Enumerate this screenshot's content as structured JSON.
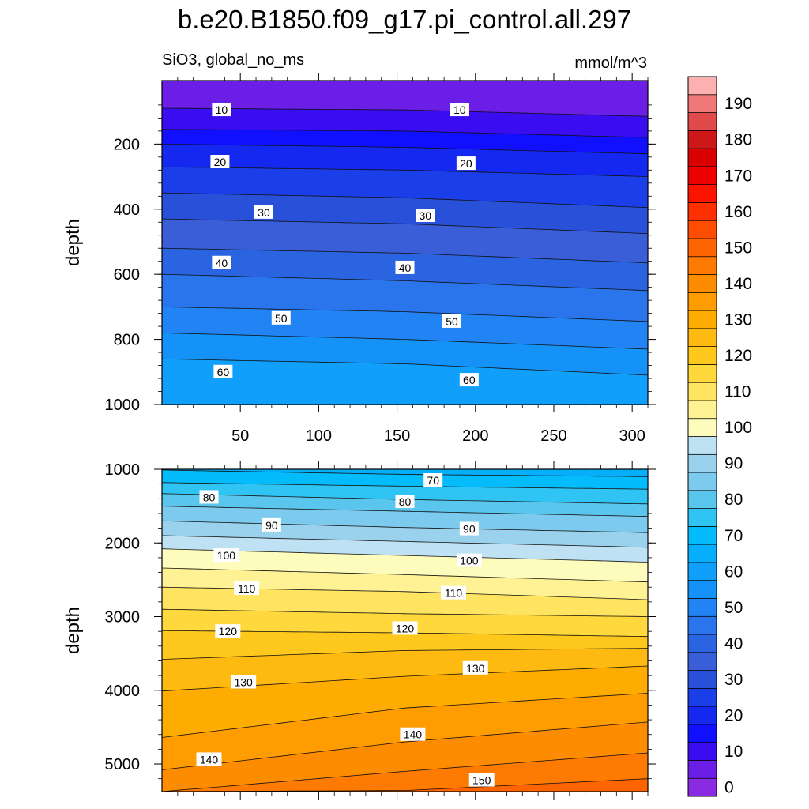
{
  "chart_data": {
    "type": "contour",
    "title": "b.e20.B1850.f09_g17.pi_control.all.297",
    "variable_label": "SiO3, global_no_ms",
    "units": "mmol/m^3",
    "colorbar": {
      "levels": [
        0,
        5,
        10,
        15,
        20,
        25,
        30,
        35,
        40,
        45,
        50,
        55,
        60,
        65,
        70,
        75,
        80,
        85,
        90,
        95,
        100,
        105,
        110,
        115,
        120,
        125,
        130,
        135,
        140,
        145,
        150,
        155,
        160,
        165,
        170,
        175,
        180,
        185,
        190,
        195
      ],
      "tick_labels": [
        "0",
        "10",
        "20",
        "30",
        "40",
        "50",
        "60",
        "70",
        "80",
        "90",
        "100",
        "110",
        "120",
        "130",
        "140",
        "150",
        "160",
        "170",
        "180",
        "190"
      ],
      "colors": [
        "#8a2be2",
        "#6a1ee6",
        "#3a0cf0",
        "#1010ff",
        "#1428f0",
        "#1a3ee8",
        "#2850d8",
        "#3a5ed8",
        "#2a64e0",
        "#2a74ec",
        "#2284f4",
        "#1492f8",
        "#10a0fc",
        "#06aefc",
        "#04bcfc",
        "#30c4f4",
        "#5ac6ee",
        "#7ccaee",
        "#9ad2ee",
        "#bee2f4",
        "#fefcbc",
        "#fef294",
        "#fee460",
        "#fed83c",
        "#fec81c",
        "#feba10",
        "#feac00",
        "#fe9c00",
        "#fe8c00",
        "#fe7a00",
        "#fe6400",
        "#fe4c00",
        "#fe3000",
        "#fc1400",
        "#ec0000",
        "#d80000",
        "#cc1818",
        "#e04a4a",
        "#f07878",
        "#fcb0b0"
      ]
    },
    "panels": [
      {
        "name": "upper",
        "ylabel": "depth",
        "x_range": [
          0,
          310
        ],
        "y_range": [
          5,
          1000
        ],
        "x_ticks": [
          50,
          100,
          150,
          200,
          250,
          300
        ],
        "y_ticks": [
          200,
          400,
          600,
          800,
          1000
        ],
        "x_tick_labels": [
          "50",
          "100",
          "150",
          "200",
          "250",
          "300"
        ],
        "y_tick_labels": [
          "200",
          "400",
          "600",
          "800",
          "1000"
        ],
        "bands": [
          {
            "level": 5,
            "depth": [
              5,
              5,
              5
            ]
          },
          {
            "level": 10,
            "depth": [
              90,
              95,
              115
            ]
          },
          {
            "level": 15,
            "depth": [
              155,
              160,
              180
            ]
          },
          {
            "level": 20,
            "depth": [
              200,
              210,
              230
            ]
          },
          {
            "level": 25,
            "depth": [
              270,
              280,
              300
            ]
          },
          {
            "level": 30,
            "depth": [
              350,
              365,
              395
            ]
          },
          {
            "level": 35,
            "depth": [
              430,
              445,
              475
            ]
          },
          {
            "level": 40,
            "depth": [
              520,
              535,
              565
            ]
          },
          {
            "level": 45,
            "depth": [
              600,
              620,
              650
            ]
          },
          {
            "level": 50,
            "depth": [
              700,
              715,
              745
            ]
          },
          {
            "level": 55,
            "depth": [
              780,
              800,
              830
            ]
          },
          {
            "level": 60,
            "depth": [
              860,
              875,
              910
            ]
          }
        ],
        "contour_labels": [
          {
            "text": "10",
            "x": 38,
            "y": 95
          },
          {
            "text": "10",
            "x": 190,
            "y": 95
          },
          {
            "text": "20",
            "x": 37,
            "y": 255
          },
          {
            "text": "20",
            "x": 194,
            "y": 260
          },
          {
            "text": "30",
            "x": 65,
            "y": 410
          },
          {
            "text": "30",
            "x": 168,
            "y": 420
          },
          {
            "text": "40",
            "x": 38,
            "y": 565
          },
          {
            "text": "40",
            "x": 155,
            "y": 580
          },
          {
            "text": "50",
            "x": 76,
            "y": 735
          },
          {
            "text": "50",
            "x": 185,
            "y": 745
          },
          {
            "text": "60",
            "x": 39,
            "y": 900
          },
          {
            "text": "60",
            "x": 196,
            "y": 925
          }
        ]
      },
      {
        "name": "lower",
        "ylabel": "depth",
        "x_range": [
          0,
          310
        ],
        "y_range": [
          1000,
          5375
        ],
        "y_ticks": [
          1000,
          2000,
          3000,
          4000,
          5000
        ],
        "y_tick_labels": [
          "1000",
          "2000",
          "3000",
          "4000",
          "5000"
        ],
        "bands": [
          {
            "level": 65,
            "depth": [
              1000,
              1000,
              1000
            ]
          },
          {
            "level": 70,
            "depth": [
              1010,
              1070,
              1100
            ]
          },
          {
            "level": 75,
            "depth": [
              1180,
              1230,
              1270
            ]
          },
          {
            "level": 80,
            "depth": [
              1330,
              1410,
              1470
            ]
          },
          {
            "level": 85,
            "depth": [
              1500,
              1570,
              1640
            ]
          },
          {
            "level": 90,
            "depth": [
              1700,
              1790,
              1860
            ]
          },
          {
            "level": 95,
            "depth": [
              1900,
              1980,
              2060
            ]
          },
          {
            "level": 100,
            "depth": [
              2080,
              2170,
              2260
            ]
          },
          {
            "level": 105,
            "depth": [
              2340,
              2430,
              2530
            ]
          },
          {
            "level": 110,
            "depth": [
              2600,
              2660,
              2770
            ]
          },
          {
            "level": 115,
            "depth": [
              2900,
              2960,
              3000
            ]
          },
          {
            "level": 120,
            "depth": [
              3190,
              3220,
              3270
            ]
          },
          {
            "level": 125,
            "depth": [
              3580,
              3460,
              3430
            ]
          },
          {
            "level": 130,
            "depth": [
              4010,
              3810,
              3670
            ]
          },
          {
            "level": 135,
            "depth": [
              4640,
              4240,
              4040
            ]
          },
          {
            "level": 140,
            "depth": [
              5080,
              4700,
              4430
            ]
          },
          {
            "level": 145,
            "depth": [
              5375,
              5100,
              4850
            ]
          },
          {
            "level": 150,
            "depth": [
              5375,
              5360,
              5200
            ]
          }
        ],
        "contour_labels": [
          {
            "text": "70",
            "x": 173,
            "y": 1150
          },
          {
            "text": "80",
            "x": 30,
            "y": 1380
          },
          {
            "text": "80",
            "x": 155,
            "y": 1440
          },
          {
            "text": "90",
            "x": 70,
            "y": 1760
          },
          {
            "text": "90",
            "x": 196,
            "y": 1810
          },
          {
            "text": "100",
            "x": 41,
            "y": 2170
          },
          {
            "text": "100",
            "x": 196,
            "y": 2240
          },
          {
            "text": "110",
            "x": 54,
            "y": 2620
          },
          {
            "text": "110",
            "x": 186,
            "y": 2680
          },
          {
            "text": "120",
            "x": 42,
            "y": 3200
          },
          {
            "text": "120",
            "x": 155,
            "y": 3160
          },
          {
            "text": "130",
            "x": 52,
            "y": 3890
          },
          {
            "text": "130",
            "x": 200,
            "y": 3700
          },
          {
            "text": "140",
            "x": 30,
            "y": 4940
          },
          {
            "text": "140",
            "x": 160,
            "y": 4600
          },
          {
            "text": "150",
            "x": 204,
            "y": 5220
          }
        ]
      }
    ]
  }
}
